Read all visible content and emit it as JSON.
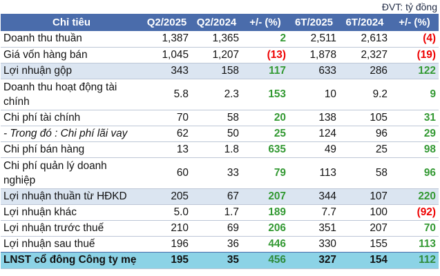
{
  "unit_label": "ĐVT: tỷ đồng",
  "colors": {
    "header_bg": "#4a6cab",
    "highlight_row_bg": "#dbe5f1",
    "total_row_bg": "#8cd3e6",
    "positive": "#339933",
    "negative": "#ee0000"
  },
  "table": {
    "headers": [
      "Chỉ tiêu",
      "Q2/2025",
      "Q2/2024",
      "+/- (%)",
      "6T/2025",
      "6T/2024",
      "+/- (%)"
    ],
    "rows": [
      {
        "name": "Doanh thu thuần",
        "q2_2025": "1,387",
        "q2_2024": "1,365",
        "q_change": "2",
        "h1_2025": "2,511",
        "h1_2024": "2,613",
        "h_change": "(4)"
      },
      {
        "name": "Giá vốn hàng bán",
        "q2_2025": "1,045",
        "q2_2024": "1,207",
        "q_change": "(13)",
        "h1_2025": "1,878",
        "h1_2024": "2,327",
        "h_change": "(19)"
      },
      {
        "name": "Lợi nhuận gộp",
        "q2_2025": "343",
        "q2_2024": "158",
        "q_change": "117",
        "h1_2025": "633",
        "h1_2024": "286",
        "h_change": "122"
      },
      {
        "name": "Doanh thu hoạt động tài chính",
        "q2_2025": "5.8",
        "q2_2024": "2.3",
        "q_change": "153",
        "h1_2025": "10",
        "h1_2024": "9.2",
        "h_change": "9"
      },
      {
        "name": "Chi phí tài chính",
        "q2_2025": "70",
        "q2_2024": "58",
        "q_change": "20",
        "h1_2025": "138",
        "h1_2024": "105",
        "h_change": "31"
      },
      {
        "name": "- Trong đó : Chi phí lãi vay",
        "q2_2025": "62",
        "q2_2024": "50",
        "q_change": "25",
        "h1_2025": "124",
        "h1_2024": "96",
        "h_change": "29"
      },
      {
        "name": "Chi phí bán hàng",
        "q2_2025": "13",
        "q2_2024": "1.8",
        "q_change": "635",
        "h1_2025": "49",
        "h1_2024": "25",
        "h_change": "98"
      },
      {
        "name": "Chi phí quản lý doanh nghiệp",
        "q2_2025": "60",
        "q2_2024": "33",
        "q_change": "79",
        "h1_2025": "113",
        "h1_2024": "58",
        "h_change": "96"
      },
      {
        "name": "Lợi nhuận thuần từ HĐKD",
        "q2_2025": "205",
        "q2_2024": "67",
        "q_change": "207",
        "h1_2025": "344",
        "h1_2024": "107",
        "h_change": "220"
      },
      {
        "name": "Lợi nhuận khác",
        "q2_2025": "5.0",
        "q2_2024": "1.7",
        "q_change": "189",
        "h1_2025": "7.7",
        "h1_2024": "100",
        "h_change": "(92)"
      },
      {
        "name": "Lợi nhuận trước thuế",
        "q2_2025": "210",
        "q2_2024": "69",
        "q_change": "206",
        "h1_2025": "351",
        "h1_2024": "207",
        "h_change": "70"
      },
      {
        "name": "Lợi nhuận sau thuế",
        "q2_2025": "196",
        "q2_2024": "36",
        "q_change": "446",
        "h1_2025": "330",
        "h1_2024": "155",
        "h_change": "113"
      },
      {
        "name": "LNST cổ đông Công ty mẹ",
        "q2_2025": "195",
        "q2_2024": "35",
        "q_change": "456",
        "h1_2025": "327",
        "h1_2024": "154",
        "h_change": "112"
      }
    ]
  }
}
